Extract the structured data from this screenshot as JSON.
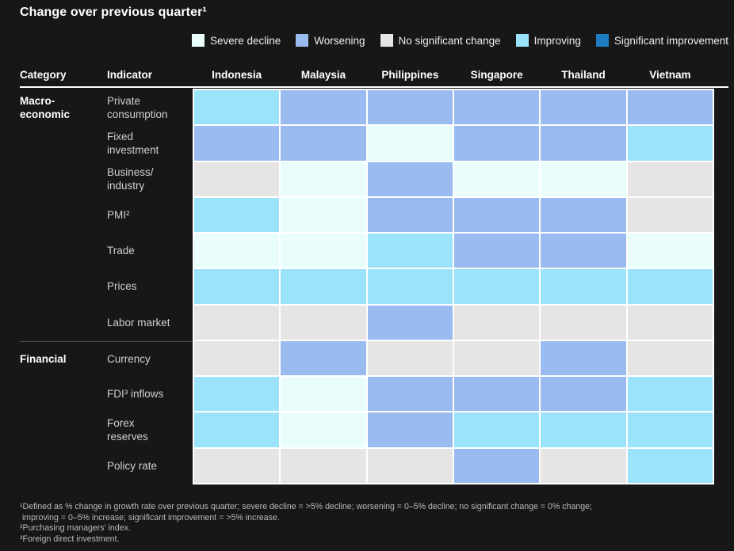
{
  "title": "Change over previous quarter¹",
  "colors": {
    "severe_decline": "#E9FDFB",
    "worsening": "#99BBEF",
    "no_significant_change": "#E6E5E3",
    "improving": "#9BE2FB",
    "significant_improvement": "#1E7CC2",
    "background": "#171717",
    "grid_line": "#FFFFFF"
  },
  "legend": {
    "items": [
      {
        "key": "severe_decline",
        "label": "Severe decline"
      },
      {
        "key": "worsening",
        "label": "Worsening"
      },
      {
        "key": "no_significant_change",
        "label": "No significant change"
      },
      {
        "key": "improving",
        "label": "Improving"
      },
      {
        "key": "significant_improvement",
        "label": "Significant improvement"
      }
    ]
  },
  "header": {
    "category": "Category",
    "indicator": "Indicator"
  },
  "chart_data": {
    "type": "heatmap",
    "title": "Change over previous quarter¹",
    "legend_position": "top",
    "scale_order": [
      "severe_decline",
      "worsening",
      "no_significant_change",
      "improving",
      "significant_improvement"
    ],
    "columns": [
      "Indonesia",
      "Malaysia",
      "Philippines",
      "Singapore",
      "Thailand",
      "Vietnam"
    ],
    "rows": [
      {
        "category": "Macro-\neconomic",
        "indicator": "Private\nconsumption",
        "values": [
          "improving",
          "worsening",
          "worsening",
          "worsening",
          "worsening",
          "worsening"
        ]
      },
      {
        "category": "",
        "indicator": "Fixed\ninvestment",
        "values": [
          "worsening",
          "worsening",
          "severe_decline",
          "worsening",
          "worsening",
          "improving"
        ]
      },
      {
        "category": "",
        "indicator": "Business/\nindustry",
        "values": [
          "no_significant_change",
          "severe_decline",
          "worsening",
          "severe_decline",
          "severe_decline",
          "no_significant_change"
        ]
      },
      {
        "category": "",
        "indicator": "PMI²",
        "values": [
          "improving",
          "severe_decline",
          "worsening",
          "worsening",
          "worsening",
          "no_significant_change"
        ]
      },
      {
        "category": "",
        "indicator": "Trade",
        "values": [
          "severe_decline",
          "severe_decline",
          "improving",
          "worsening",
          "worsening",
          "severe_decline"
        ]
      },
      {
        "category": "",
        "indicator": "Prices",
        "values": [
          "improving",
          "improving",
          "improving",
          "improving",
          "improving",
          "improving"
        ]
      },
      {
        "category": "",
        "indicator": "Labor market",
        "values": [
          "no_significant_change",
          "no_significant_change",
          "worsening",
          "no_significant_change",
          "no_significant_change",
          "no_significant_change"
        ]
      },
      {
        "category": "Financial",
        "indicator": "Currency",
        "values": [
          "no_significant_change",
          "worsening",
          "no_significant_change",
          "no_significant_change",
          "worsening",
          "no_significant_change"
        ]
      },
      {
        "category": "",
        "indicator": "FDI³ inflows",
        "values": [
          "improving",
          "severe_decline",
          "worsening",
          "worsening",
          "worsening",
          "improving"
        ]
      },
      {
        "category": "",
        "indicator": "Forex\nreserves",
        "values": [
          "improving",
          "severe_decline",
          "worsening",
          "improving",
          "improving",
          "improving"
        ]
      },
      {
        "category": "",
        "indicator": "Policy rate",
        "values": [
          "no_significant_change",
          "no_significant_change",
          "no_significant_change",
          "worsening",
          "no_significant_change",
          "improving"
        ]
      }
    ]
  },
  "footnotes": {
    "lines": [
      "¹Defined as % change in growth rate over previous quarter; severe decline = >5% decline; worsening = 0–5% decline; no significant change = 0% change;",
      " improving = 0–5% increase; significant improvement = >5% increase.",
      "²Purchasing managers' index.",
      "³Foreign direct investment."
    ]
  }
}
